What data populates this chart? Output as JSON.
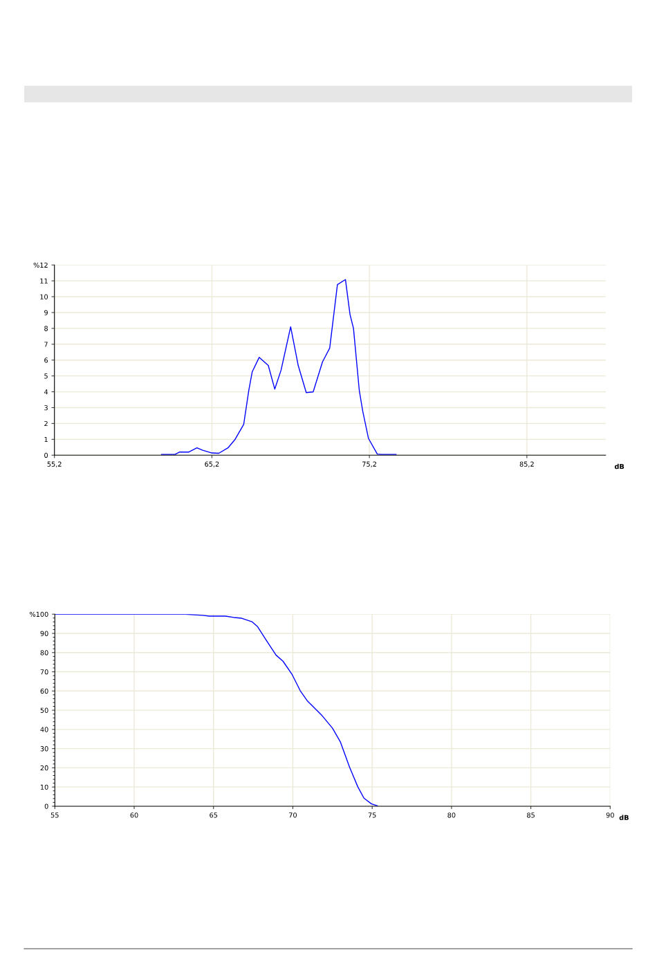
{
  "chart_data": [
    {
      "type": "line",
      "xlabel": "dB",
      "grid": true,
      "marker": "none",
      "line_style": "solid",
      "x": [
        62.0,
        62.86,
        63.15,
        63.74,
        64.25,
        64.61,
        65.2,
        65.64,
        66.22,
        66.66,
        67.22,
        67.54,
        67.76,
        68.2,
        68.78,
        69.19,
        69.59,
        70.2,
        70.68,
        71.19,
        71.63,
        72.22,
        72.68,
        73.17,
        73.68,
        73.97,
        74.19,
        74.56,
        74.78,
        75.14,
        75.7,
        75.95,
        76.89
      ],
      "series": [
        {
          "color": "#0000ff",
          "values": [
            0.05,
            0.05,
            0.2,
            0.2,
            0.46,
            0.31,
            0.14,
            0.12,
            0.46,
            0.98,
            1.95,
            4.07,
            5.26,
            6.17,
            5.66,
            4.17,
            5.36,
            8.1,
            5.66,
            3.95,
            3.99,
            5.88,
            6.76,
            10.76,
            11.08,
            8.87,
            8.0,
            4.07,
            2.77,
            1.06,
            0.07,
            0.05,
            0.05
          ]
        }
      ],
      "xlim": [
        55.2,
        90.2
      ],
      "xticks": [
        {
          "value": 55.2,
          "label": "55,2"
        },
        {
          "value": 65.2,
          "label": "65,2"
        },
        {
          "value": 75.2,
          "label": "75,2"
        },
        {
          "value": 85.2,
          "label": "85,2"
        }
      ],
      "ylim": [
        0,
        12
      ],
      "yticks": [
        0,
        1,
        2,
        3,
        4,
        5,
        6,
        7,
        8,
        9,
        10,
        11,
        {
          "value": 12,
          "label": "%12"
        }
      ]
    },
    {
      "type": "line",
      "xlabel": "dB",
      "grid": true,
      "marker": "none",
      "line_style": "solid",
      "x": [
        55,
        63.22,
        64.3,
        64.74,
        65.76,
        66.27,
        66.77,
        67.42,
        67.78,
        68.29,
        68.94,
        69.38,
        69.96,
        70.47,
        70.9,
        71.26,
        71.84,
        72.5,
        73.0,
        73.58,
        74.09,
        74.48,
        74.96,
        75.32
      ],
      "series": [
        {
          "color": "#0000ff",
          "values": [
            100,
            100,
            99.4,
            99.0,
            99.0,
            98.3,
            97.9,
            96.1,
            93.5,
            86.9,
            78.7,
            75.5,
            68.5,
            60.1,
            55.0,
            52.0,
            47.2,
            40.6,
            33.4,
            20.2,
            10.2,
            4.2,
            1.2,
            0.3
          ]
        }
      ],
      "xlim": [
        55,
        90
      ],
      "xticks": [
        55,
        60,
        65,
        70,
        75,
        80,
        85,
        90
      ],
      "ylim": [
        0,
        100
      ],
      "yticks": [
        0,
        10,
        20,
        30,
        40,
        50,
        60,
        70,
        80,
        90,
        {
          "value": 100,
          "label": "%100"
        }
      ]
    }
  ]
}
